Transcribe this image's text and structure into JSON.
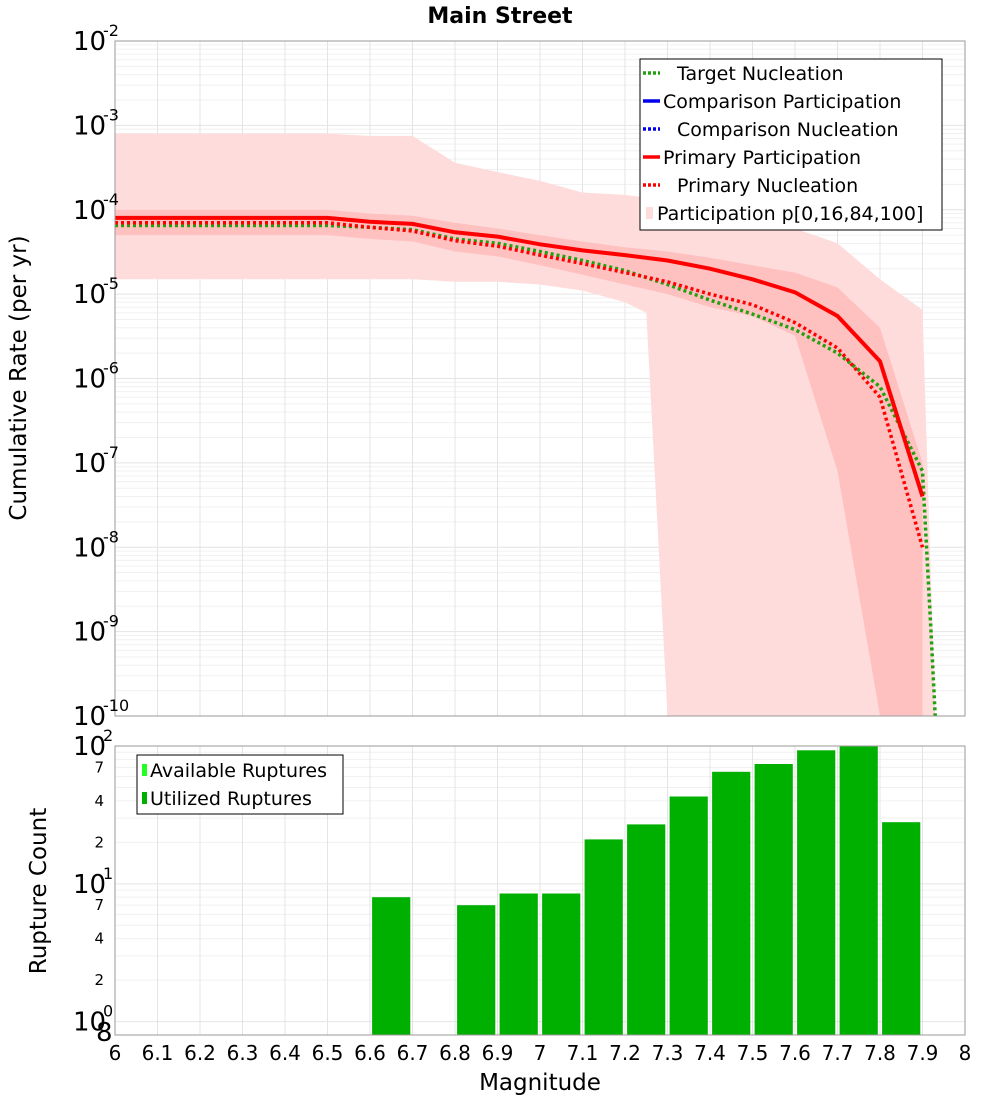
{
  "chart_data": [
    {
      "type": "line",
      "title": "Main Street",
      "xlabel": "",
      "ylabel": "Cumulative Rate (per yr)",
      "yscale": "log",
      "xlim": [
        6,
        8
      ],
      "ylim": [
        1e-10,
        0.01
      ],
      "ytick_exponents": [
        -2,
        -3,
        -4,
        -5,
        -6,
        -7,
        -8,
        -9,
        -10
      ],
      "grid": true,
      "legend_position": "top-right",
      "legend": [
        {
          "label": "Target Nucleation",
          "color": "#22a00f",
          "style": "dotted"
        },
        {
          "label": "Comparison Participation",
          "color": "#0000ee",
          "style": "solid"
        },
        {
          "label": "Comparison Nucleation",
          "color": "#0000ee",
          "style": "dotted"
        },
        {
          "label": "Primary Participation",
          "color": "#ff0000",
          "style": "solid"
        },
        {
          "label": "Primary Nucleation",
          "color": "#ff0000",
          "style": "dotted"
        },
        {
          "label": "Participation p[0,16,84,100]",
          "color": "#ffdcdc",
          "style": "band"
        }
      ],
      "bands": [
        {
          "name": "p0-p100",
          "color": "#ffdcdc",
          "x": [
            6.0,
            6.1,
            6.2,
            6.3,
            6.4,
            6.5,
            6.6,
            6.7,
            6.8,
            6.9,
            7.0,
            7.1,
            7.2,
            7.25,
            7.3,
            7.4,
            7.5,
            7.6,
            7.7,
            7.8,
            7.9,
            7.93
          ],
          "upper": [
            0.0008,
            0.0008,
            0.0008,
            0.0008,
            0.0008,
            0.0008,
            0.00075,
            0.00075,
            0.00036,
            0.00028,
            0.00022,
            0.00016,
            0.00015,
            0.00014,
            0.00012,
            0.0001,
            8e-05,
            6e-05,
            4e-05,
            1.5e-05,
            6.5e-06,
            1e-10
          ],
          "lower": [
            1.5e-05,
            1.5e-05,
            1.5e-05,
            1.5e-05,
            1.5e-05,
            1.5e-05,
            1.5e-05,
            1.5e-05,
            1.4e-05,
            1.4e-05,
            1.3e-05,
            1.1e-05,
            8e-06,
            6e-06,
            1e-10,
            1e-10,
            1e-10,
            1e-10,
            1e-10,
            1e-10,
            1e-10,
            1e-10
          ]
        },
        {
          "name": "p16-p84",
          "color": "#ffc0c0",
          "x": [
            6.0,
            6.1,
            6.2,
            6.3,
            6.4,
            6.5,
            6.6,
            6.7,
            6.8,
            6.9,
            7.0,
            7.1,
            7.2,
            7.3,
            7.4,
            7.5,
            7.6,
            7.7,
            7.8,
            7.9
          ],
          "upper": [
            0.0001,
            0.0001,
            0.0001,
            0.0001,
            0.0001,
            0.0001,
            9e-05,
            8.5e-05,
            7e-05,
            6e-05,
            5e-05,
            4.2e-05,
            3.6e-05,
            3.2e-05,
            2.7e-05,
            2.2e-05,
            1.8e-05,
            1.2e-05,
            4e-06,
            1e-07
          ],
          "lower": [
            5e-05,
            5e-05,
            5e-05,
            5e-05,
            5e-05,
            5e-05,
            4.5e-05,
            4.2e-05,
            3.2e-05,
            2.8e-05,
            2.2e-05,
            1.7e-05,
            1.3e-05,
            1e-05,
            7e-06,
            5.5e-06,
            3.2e-06,
            8e-08,
            1e-10,
            1e-10
          ]
        }
      ],
      "series": [
        {
          "name": "Target Nucleation",
          "color": "#22a00f",
          "style": "dotted",
          "x": [
            6.0,
            6.1,
            6.2,
            6.3,
            6.4,
            6.5,
            6.6,
            6.7,
            6.8,
            6.9,
            7.0,
            7.1,
            7.2,
            7.3,
            7.4,
            7.5,
            7.6,
            7.7,
            7.8,
            7.9,
            7.92,
            7.93
          ],
          "y": [
            6.5e-05,
            6.5e-05,
            6.5e-05,
            6.5e-05,
            6.5e-05,
            6.5e-05,
            6.2e-05,
            5.8e-05,
            4.5e-05,
            4e-05,
            3.2e-05,
            2.5e-05,
            1.9e-05,
            1.3e-05,
            8.5e-06,
            5.8e-06,
            3.8e-06,
            2e-06,
            8e-07,
            8e-08,
            1e-09,
            1e-10
          ]
        },
        {
          "name": "Primary Participation",
          "color": "#ff0000",
          "style": "solid",
          "x": [
            6.0,
            6.1,
            6.2,
            6.3,
            6.4,
            6.5,
            6.6,
            6.7,
            6.8,
            6.9,
            7.0,
            7.1,
            7.2,
            7.3,
            7.4,
            7.5,
            7.6,
            7.7,
            7.8,
            7.9
          ],
          "y": [
            8e-05,
            8e-05,
            8e-05,
            8e-05,
            8e-05,
            8e-05,
            7.2e-05,
            6.8e-05,
            5.4e-05,
            4.8e-05,
            3.9e-05,
            3.3e-05,
            2.9e-05,
            2.5e-05,
            2e-05,
            1.5e-05,
            1.05e-05,
            5.5e-06,
            1.6e-06,
            4e-08
          ]
        },
        {
          "name": "Primary Nucleation",
          "color": "#ff0000",
          "style": "dotted",
          "x": [
            6.0,
            6.1,
            6.2,
            6.3,
            6.4,
            6.5,
            6.6,
            6.7,
            6.8,
            6.9,
            7.0,
            7.1,
            7.2,
            7.3,
            7.4,
            7.5,
            7.6,
            7.7,
            7.8,
            7.9
          ],
          "y": [
            7e-05,
            7e-05,
            7e-05,
            7e-05,
            7e-05,
            7e-05,
            6.2e-05,
            5.6e-05,
            4.3e-05,
            3.7e-05,
            2.9e-05,
            2.3e-05,
            1.8e-05,
            1.4e-05,
            1e-05,
            7.5e-06,
            4.6e-06,
            2.3e-06,
            6e-07,
            1e-08
          ]
        }
      ]
    },
    {
      "type": "bar",
      "title": "",
      "xlabel": "Magnitude",
      "ylabel": "Rupture Count",
      "yscale": "log",
      "xlim": [
        6,
        8
      ],
      "ylim": [
        0.8,
        100
      ],
      "x_ticks": [
        "6",
        "6.1",
        "6.2",
        "6.3",
        "6.4",
        "6.5",
        "6.6",
        "6.7",
        "6.8",
        "6.9",
        "7",
        "7.1",
        "7.2",
        "7.3",
        "7.4",
        "7.5",
        "7.6",
        "7.7",
        "7.8",
        "7.9",
        "8"
      ],
      "y_minor_ticks": [
        "7",
        "4",
        "2",
        "7",
        "4",
        "2"
      ],
      "y_bottom_label": "8",
      "grid": true,
      "legend_position": "top-left",
      "legend": [
        {
          "label": "Available Ruptures",
          "color": "#22ff22"
        },
        {
          "label": "Utilized Ruptures",
          "color": "#00b000"
        }
      ],
      "series": [
        {
          "name": "Utilized Ruptures",
          "color": "#00b000",
          "x": [
            6.65,
            6.85,
            6.95,
            7.05,
            7.15,
            7.25,
            7.35,
            7.45,
            7.55,
            7.65,
            7.75,
            7.85
          ],
          "values": [
            8,
            7,
            8.5,
            8.5,
            21,
            27,
            43,
            65,
            74,
            93,
            100,
            28
          ]
        }
      ]
    }
  ]
}
